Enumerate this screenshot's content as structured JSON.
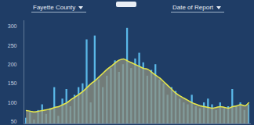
{
  "chart_data": {
    "type": "bar",
    "annotations": [
      "Fayette County",
      "Date of Report"
    ],
    "categories": [
      null,
      null,
      null,
      null,
      null,
      null,
      null,
      null,
      null,
      null,
      null,
      null,
      null,
      null,
      null,
      null,
      null,
      null,
      null,
      null,
      null,
      null,
      null,
      null,
      null,
      null,
      null,
      null,
      null,
      null,
      null,
      null,
      null,
      null,
      null,
      null,
      null,
      null,
      null,
      null,
      null,
      null,
      null,
      null,
      null,
      null,
      null,
      null,
      null,
      null,
      null,
      null,
      null,
      null,
      null,
      null
    ],
    "series": [
      {
        "type": "bar",
        "color": "#5ab8e8",
        "values": [
          60,
          75,
          55,
          80,
          95,
          70,
          85,
          140,
          65,
          110,
          135,
          90,
          120,
          140,
          150,
          265,
          100,
          275,
          160,
          140,
          170,
          190,
          210,
          180,
          200,
          295,
          190,
          215,
          230,
          205,
          170,
          185,
          200,
          160,
          150,
          120,
          140,
          130,
          110,
          100,
          95,
          120,
          90,
          85,
          100,
          110,
          95,
          80,
          100,
          85,
          90,
          135,
          90,
          100,
          80,
          95
        ]
      },
      {
        "type": "area",
        "color": "#e6e84a",
        "values": [
          80,
          78,
          76,
          78,
          80,
          82,
          84,
          88,
          90,
          95,
          100,
          108,
          115,
          122,
          130,
          140,
          150,
          158,
          168,
          178,
          188,
          196,
          205,
          212,
          215,
          210,
          205,
          200,
          195,
          190,
          188,
          180,
          172,
          165,
          155,
          145,
          135,
          125,
          118,
          112,
          106,
          100,
          96,
          92,
          90,
          88,
          86,
          88,
          90,
          88,
          86,
          90,
          92,
          95,
          92,
          100
        ]
      }
    ],
    "ylim": [
      45,
      315
    ],
    "yticks": [
      50,
      100,
      150,
      200,
      250,
      300
    ],
    "tick_labels": "y",
    "grid": false
  }
}
